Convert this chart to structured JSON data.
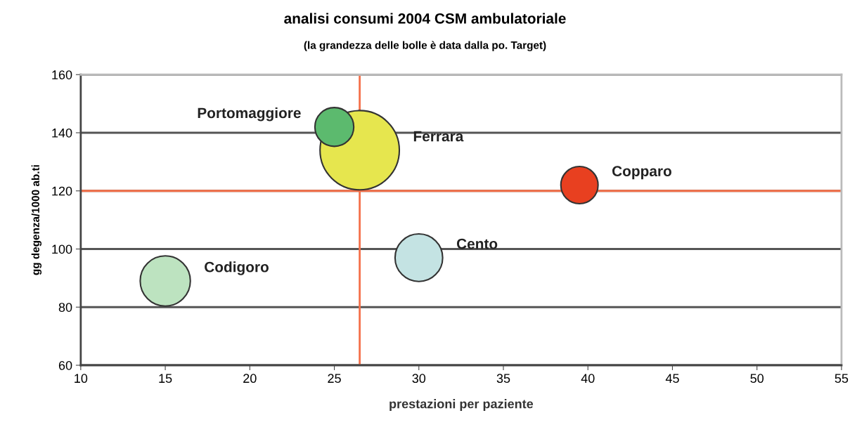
{
  "chart_data": {
    "type": "bubble",
    "title": "analisi consumi 2004 CSM ambulatoriale",
    "subtitle": "(la grandezza delle bolle è data dalla po. Target)",
    "xlabel": "prestazioni per paziente",
    "ylabel": "gg degenza/1000 ab.ti",
    "xlim": [
      10,
      55
    ],
    "xticks": [
      10,
      15,
      20,
      25,
      30,
      35,
      40,
      45,
      50,
      55
    ],
    "ylim": [
      60,
      160
    ],
    "yticks": [
      60,
      80,
      100,
      120,
      140,
      160
    ],
    "grid": "y",
    "legend": false,
    "ref_lines": [
      {
        "axis": "x",
        "value": 26.5,
        "color": "#f4704a"
      },
      {
        "axis": "y",
        "value": 120,
        "color": "#f4704a"
      }
    ],
    "series": [
      {
        "name": "Ferrara",
        "color": "#e6e64e",
        "x": [
          26.5
        ],
        "values": [
          134
        ],
        "sizes": [
          1
        ]
      },
      {
        "name": "Portomaggiore",
        "color": "#5cba6e",
        "x": [
          25
        ],
        "values": [
          142
        ],
        "sizes": [
          0.24
        ]
      },
      {
        "name": "Copparo",
        "color": "#e84020",
        "x": [
          39.5
        ],
        "values": [
          122
        ],
        "sizes": [
          0.22
        ]
      },
      {
        "name": "Cento",
        "color": "#c4e3e3",
        "x": [
          30
        ],
        "values": [
          97
        ],
        "sizes": [
          0.36
        ]
      },
      {
        "name": "Codigoro",
        "color": "#bde3c0",
        "x": [
          15
        ],
        "values": [
          89
        ],
        "sizes": [
          0.4
        ]
      }
    ]
  }
}
